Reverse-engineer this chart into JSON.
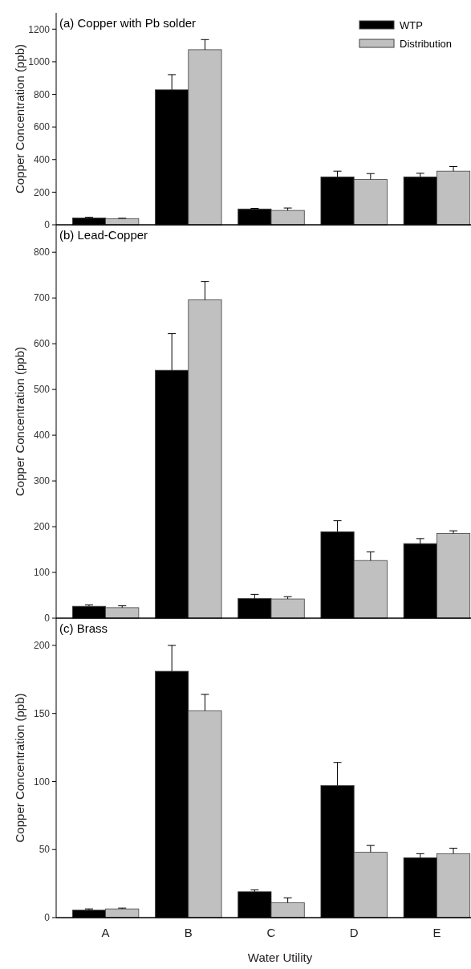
{
  "chart_data": [
    {
      "type": "bar",
      "title": "(a) Copper with Pb solder",
      "ylabel": "Copper Concentration (ppb)",
      "categories": [
        null,
        null,
        null,
        null,
        null
      ],
      "ylim": [
        0,
        1300
      ],
      "yticks": [
        0,
        200,
        400,
        600,
        800,
        1000,
        1200
      ],
      "tick_labels": "y",
      "legend": "top right",
      "series": [
        {
          "name": "WTP",
          "color": "#000000",
          "values": [
            42,
            828,
            97,
            294,
            294
          ],
          "errors": [
            [
              42,
              46
            ],
            [
              828,
              921
            ],
            [
              97,
              101
            ],
            [
              294,
              329
            ],
            [
              294,
              316
            ]
          ]
        },
        {
          "name": "Distribution",
          "color": "#c0c0c0",
          "values": [
            38,
            1074,
            88,
            278,
            329
          ],
          "errors": [
            [
              38,
              40
            ],
            [
              1074,
              1136
            ],
            [
              88,
              103
            ],
            [
              278,
              314
            ],
            [
              329,
              357
            ]
          ]
        }
      ]
    },
    {
      "type": "bar",
      "title": "(b) Lead-Copper",
      "ylabel": "Copper Concentration (ppb)",
      "categories": [
        null,
        null,
        null,
        null,
        null
      ],
      "ylim": [
        0,
        860
      ],
      "yticks": [
        0,
        100,
        200,
        300,
        400,
        500,
        600,
        700,
        800
      ],
      "tick_labels": "y",
      "series": [
        {
          "color": "#000000",
          "values": [
            26,
            542,
            43,
            189,
            163
          ],
          "errors": [
            [
              26,
              29
            ],
            [
              542,
              622
            ],
            [
              43,
              52
            ],
            [
              189,
              213
            ],
            [
              163,
              174
            ]
          ]
        },
        {
          "color": "#c0c0c0",
          "values": [
            23,
            696,
            42,
            126,
            185
          ],
          "errors": [
            [
              23,
              27
            ],
            [
              696,
              736
            ],
            [
              42,
              47
            ],
            [
              126,
              145
            ],
            [
              185,
              191
            ]
          ]
        }
      ]
    },
    {
      "type": "bar",
      "title": "(c) Brass",
      "ylabel": "Copper Concentration (ppb)",
      "xlabel": "Water Utility",
      "categories": [
        "A",
        "B",
        "C",
        "D",
        "E"
      ],
      "ylim": [
        0,
        220
      ],
      "yticks": [
        0,
        50,
        100,
        150,
        200
      ],
      "series": [
        {
          "color": "#000000",
          "values": [
            5.5,
            181,
            19,
            97,
            44
          ],
          "errors": [
            [
              5.5,
              6.4
            ],
            [
              181,
              200
            ],
            [
              19,
              20.4
            ],
            [
              97,
              114
            ],
            [
              44,
              47
            ]
          ]
        },
        {
          "color": "#c0c0c0",
          "values": [
            6.4,
            152,
            11,
            48,
            47
          ],
          "errors": [
            [
              6.4,
              7
            ],
            [
              152,
              164
            ],
            [
              11,
              14.5
            ],
            [
              48,
              53
            ],
            [
              47,
              51
            ]
          ]
        }
      ]
    }
  ]
}
